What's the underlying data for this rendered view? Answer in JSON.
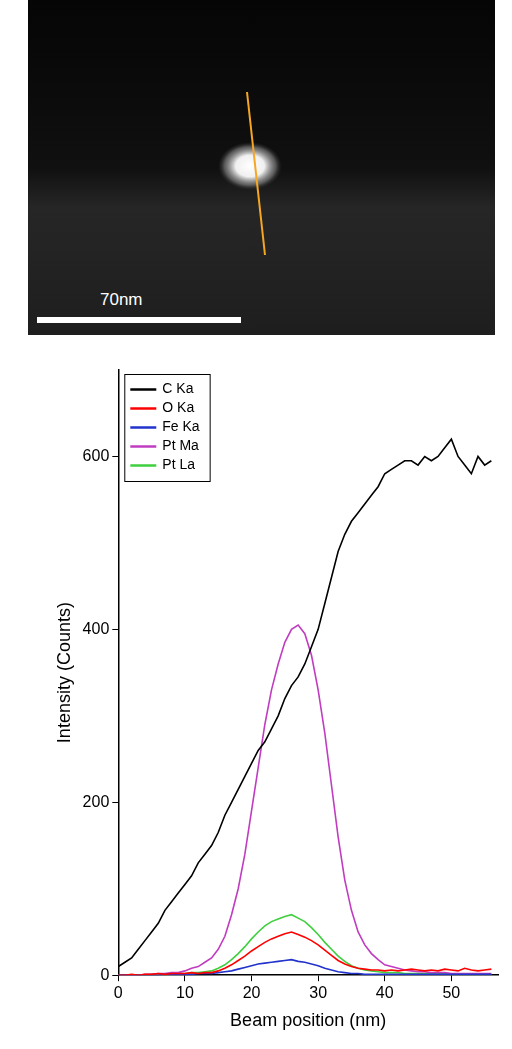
{
  "micrograph": {
    "scale_bar_label": "70nm"
  },
  "chart_data": {
    "type": "line",
    "x_label": "Beam position (nm)",
    "y_label": "Intensity (Counts)",
    "x": [
      0,
      1,
      2,
      3,
      4,
      5,
      6,
      7,
      8,
      9,
      10,
      11,
      12,
      13,
      14,
      15,
      16,
      17,
      18,
      19,
      20,
      21,
      22,
      23,
      24,
      25,
      26,
      27,
      28,
      29,
      30,
      31,
      32,
      33,
      34,
      35,
      36,
      37,
      38,
      39,
      40,
      41,
      42,
      43,
      44,
      45,
      46,
      47,
      48,
      49,
      50,
      51,
      52,
      53,
      54,
      55,
      56
    ],
    "series": [
      {
        "name": "C Ka",
        "color": "#000000",
        "values": [
          10,
          15,
          20,
          30,
          40,
          50,
          60,
          75,
          85,
          95,
          105,
          115,
          130,
          140,
          150,
          165,
          185,
          200,
          215,
          230,
          245,
          260,
          270,
          285,
          300,
          320,
          335,
          345,
          360,
          380,
          400,
          430,
          460,
          490,
          510,
          525,
          535,
          545,
          555,
          565,
          580,
          585,
          590,
          595,
          595,
          590,
          600,
          595,
          600,
          610,
          620,
          600,
          590,
          580,
          600,
          590,
          595
        ]
      },
      {
        "name": "O Ka",
        "color": "#ff0000",
        "values": [
          0,
          0,
          1,
          0,
          1,
          1,
          2,
          1,
          2,
          2,
          2,
          3,
          2,
          3,
          3,
          5,
          8,
          12,
          17,
          22,
          28,
          33,
          38,
          42,
          45,
          48,
          50,
          47,
          44,
          40,
          35,
          29,
          23,
          17,
          13,
          10,
          8,
          7,
          6,
          6,
          5,
          6,
          5,
          6,
          7,
          6,
          5,
          6,
          5,
          7,
          6,
          5,
          8,
          6,
          5,
          6,
          7
        ]
      },
      {
        "name": "Fe Ka",
        "color": "#2233cc",
        "values": [
          0,
          0,
          0,
          0,
          0,
          0,
          0,
          1,
          1,
          1,
          1,
          1,
          2,
          2,
          2,
          3,
          4,
          5,
          7,
          9,
          11,
          13,
          14,
          15,
          16,
          17,
          18,
          16,
          15,
          13,
          11,
          8,
          6,
          4,
          3,
          2,
          2,
          1,
          1,
          1,
          1,
          1,
          1,
          1,
          1,
          1,
          1,
          1,
          1,
          1,
          1,
          1,
          1,
          1,
          1,
          1,
          1
        ]
      },
      {
        "name": "Pt Ma",
        "color": "#c03cc0",
        "values": [
          0,
          0,
          0,
          0,
          1,
          1,
          2,
          2,
          3,
          3,
          5,
          8,
          10,
          15,
          20,
          30,
          45,
          70,
          100,
          140,
          190,
          240,
          290,
          330,
          360,
          385,
          400,
          405,
          395,
          370,
          330,
          280,
          220,
          160,
          110,
          75,
          50,
          35,
          25,
          18,
          12,
          10,
          8,
          6,
          5,
          4,
          4,
          3,
          3,
          3,
          2,
          2,
          2,
          2,
          2,
          2,
          2
        ]
      },
      {
        "name": "Pt La",
        "color": "#3fcf3f",
        "values": [
          0,
          0,
          0,
          0,
          0,
          1,
          1,
          1,
          1,
          2,
          2,
          3,
          3,
          4,
          5,
          8,
          12,
          18,
          25,
          33,
          42,
          50,
          57,
          62,
          65,
          68,
          70,
          66,
          62,
          55,
          47,
          38,
          30,
          22,
          16,
          11,
          8,
          6,
          5,
          4,
          3,
          3,
          3,
          2,
          2,
          2,
          2,
          2,
          2,
          2,
          1,
          1,
          1,
          1,
          1,
          1,
          1
        ]
      }
    ],
    "xlim": [
      0,
      57
    ],
    "xticks": [
      0,
      10,
      20,
      30,
      40,
      50
    ],
    "ylim": [
      0,
      700
    ],
    "yticks": [
      0,
      200,
      400,
      600
    ],
    "grid": false,
    "legend": "upper left"
  }
}
